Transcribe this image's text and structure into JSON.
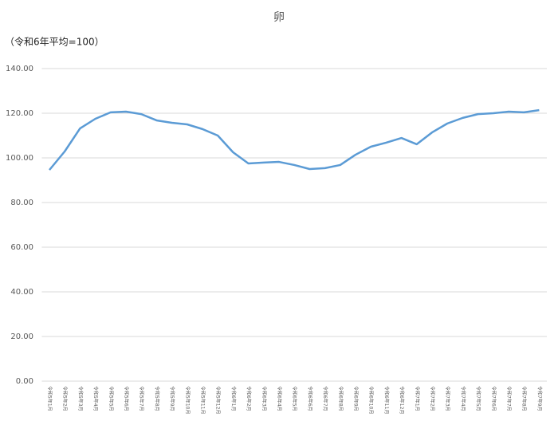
{
  "chart_data": {
    "type": "line",
    "title": "卵",
    "subtitle": "（令和6年平均=100）",
    "categories": [
      "令和5年1月",
      "令和5年2月",
      "令和5年3月",
      "令和5年4月",
      "令和5年5月",
      "令和5年6月",
      "令和5年7月",
      "令和5年8月",
      "令和5年9月",
      "令和5年10月",
      "令和5年11月",
      "令和5年12月",
      "令和6年1月",
      "令和6年2月",
      "令和6年3月",
      "令和6年4月",
      "令和6年5月",
      "令和6年6月",
      "令和6年7月",
      "令和6年8月",
      "令和6年9月",
      "令和6年10月",
      "令和6年11月",
      "令和6年12月",
      "令和7年1月",
      "令和7年2月",
      "令和7年3月",
      "令和7年4月",
      "令和7年5月",
      "令和7年6月",
      "令和7年7月",
      "令和7年8月",
      "令和7年9月"
    ],
    "values": [
      94.6,
      102.9,
      113.2,
      117.5,
      120.4,
      120.7,
      119.6,
      116.8,
      115.7,
      115.0,
      112.9,
      110.0,
      102.5,
      97.5,
      97.9,
      98.2,
      96.8,
      95.0,
      95.4,
      96.8,
      101.4,
      105.0,
      106.8,
      108.9,
      106.1,
      111.4,
      115.4,
      117.9,
      119.6,
      120.0,
      120.7,
      120.4,
      121.4
    ],
    "color": "#5b9bd5",
    "ylim": [
      0,
      140
    ],
    "yticks": [
      {
        "value": 0,
        "label": "0.00"
      },
      {
        "value": 20,
        "label": "20.00"
      },
      {
        "value": 40,
        "label": "40.00"
      },
      {
        "value": 60,
        "label": "60.00"
      },
      {
        "value": 80,
        "label": "80.00"
      },
      {
        "value": 100,
        "label": "100.00"
      },
      {
        "value": 120,
        "label": "120.00"
      },
      {
        "value": 140,
        "label": "140.00"
      }
    ],
    "grid": true
  }
}
